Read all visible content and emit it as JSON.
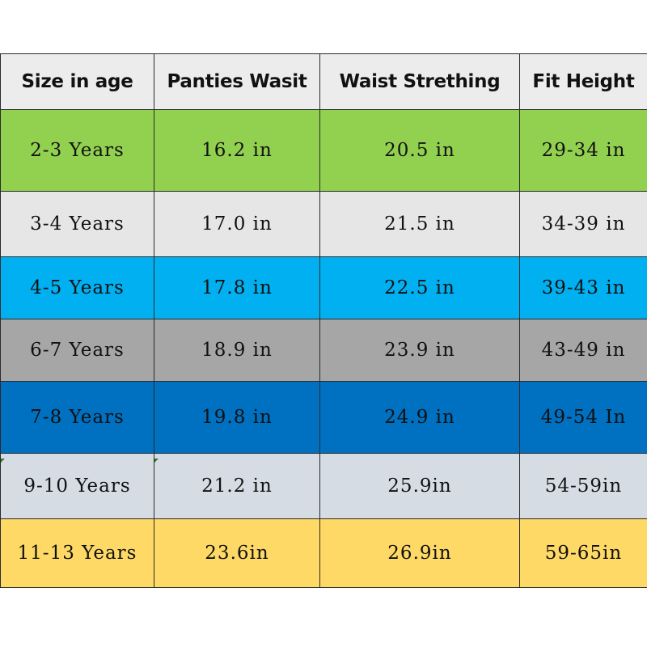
{
  "table": {
    "headers": [
      "Size in age",
      "Panties Wasit",
      "Waist Strething",
      "Fit Height"
    ],
    "rows": [
      {
        "cells": [
          "2-3 Years",
          "16.2 in",
          "20.5 in",
          "29-34 in"
        ],
        "color": "#92d050"
      },
      {
        "cells": [
          "3-4 Years",
          "17.0 in",
          "21.5 in",
          "34-39 in"
        ],
        "color": "#e7e6e6"
      },
      {
        "cells": [
          "4-5 Years",
          "17.8 in",
          "22.5 in",
          "39-43 in"
        ],
        "color": "#00b0f0"
      },
      {
        "cells": [
          "6-7 Years",
          "18.9 in",
          "23.9 in",
          "43-49 in"
        ],
        "color": "#a6a6a6"
      },
      {
        "cells": [
          "7-8 Years",
          "19.8 in",
          "24.9 in",
          "49-54 In"
        ],
        "color": "#0070c0"
      },
      {
        "cells": [
          "9-10 Years",
          "21.2 in",
          "25.9in",
          "54-59in"
        ],
        "color": "#d6dce4"
      },
      {
        "cells": [
          "11-13 Years",
          "23.6in",
          "26.9in",
          "59-65in"
        ],
        "color": "#ffd966"
      }
    ],
    "header_color": "#ececec"
  }
}
